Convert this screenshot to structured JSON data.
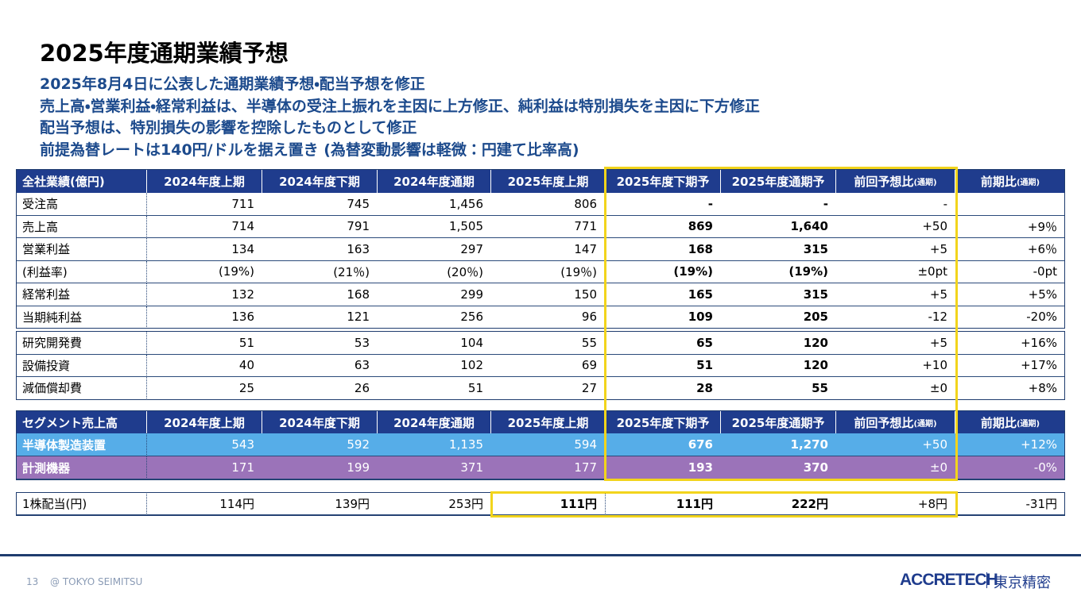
{
  "header": {
    "title": "2025年度通期業績予想",
    "bullets": [
      "2025年8月4日に公表した通期業績予想・配当予想を修正",
      "売上高・営業利益・経常利益は、半導体の受注上振れを主因に上方修正、純利益は特別損失を主因に下方修正",
      "配当予想は、特別損失の影響を控除したものとして修正",
      "前提為替レートは140円/ドルを据え置き (為替変動影響は軽微：円建て比率高)"
    ]
  },
  "table": {
    "header": [
      "全社業績(億円)",
      "2024年度上期",
      "2024年度下期",
      "2024年度通期",
      "2025年度上期",
      "2025年度下期予",
      "2025年度通期予",
      {
        "main": "前回予想比",
        "sub": "(通期)"
      },
      {
        "main": "前期比",
        "sub": "(通期)"
      }
    ],
    "rows": [
      [
        "受注高",
        "711",
        "745",
        "1,456",
        "806",
        "-",
        "-",
        "-",
        null
      ],
      [
        "売上高",
        "714",
        "791",
        "1,505",
        "771",
        "869",
        "1,640",
        "+50",
        "+9％"
      ],
      [
        "営業利益",
        "134",
        "163",
        "297",
        "147",
        "168",
        "315",
        "+5",
        "+6％"
      ],
      [
        "(利益率)",
        "(19%)",
        "(21％)",
        "(20％)",
        "(19％)",
        "(19%)",
        "(19%)",
        "±0pt",
        "-0pt"
      ],
      [
        "経常利益",
        "132",
        "168",
        "299",
        "150",
        "165",
        "315",
        "+5",
        "+5%"
      ],
      [
        "当期純利益",
        "136",
        "121",
        "256",
        "96",
        "109",
        "205",
        "-12",
        "-20%"
      ],
      [
        "研究開発費",
        "51",
        "53",
        "104",
        "55",
        "65",
        "120",
        "+5",
        "+16%"
      ],
      [
        "設備投資",
        "40",
        "63",
        "102",
        "69",
        "51",
        "120",
        "+10",
        "+17%"
      ],
      [
        "減価償却費",
        "25",
        "26",
        "51",
        "27",
        "28",
        "55",
        "±0",
        "+8%"
      ]
    ]
  },
  "segment_table": {
    "header": [
      "セグメント売上高",
      "2024年度上期",
      "2024年度下期",
      "2024年度通期",
      "2025年度上期",
      "2025年度下期予",
      "2025年度通期予",
      {
        "main": "前回予想比",
        "sub": "(通期)"
      },
      {
        "main": "前期比",
        "sub": "(通期)"
      }
    ],
    "rows": [
      [
        "半導体製造装置",
        "543",
        "592",
        "1,135",
        "594",
        "676",
        "1,270",
        "+50",
        "+12%"
      ],
      [
        "計測機器",
        "171",
        "199",
        "371",
        "177",
        "193",
        "370",
        "±0",
        "-0%"
      ]
    ]
  },
  "dividend": [
    "1株配当(円)",
    "114円",
    "139円",
    "253円",
    "111円",
    "111円",
    "222円",
    "+8円",
    "-31円"
  ],
  "footer": {
    "page": "13",
    "copyright": "@ TOKYO SEIMITSU",
    "brand": "ACCRETECH",
    "brand_jp": "東京精密"
  }
}
